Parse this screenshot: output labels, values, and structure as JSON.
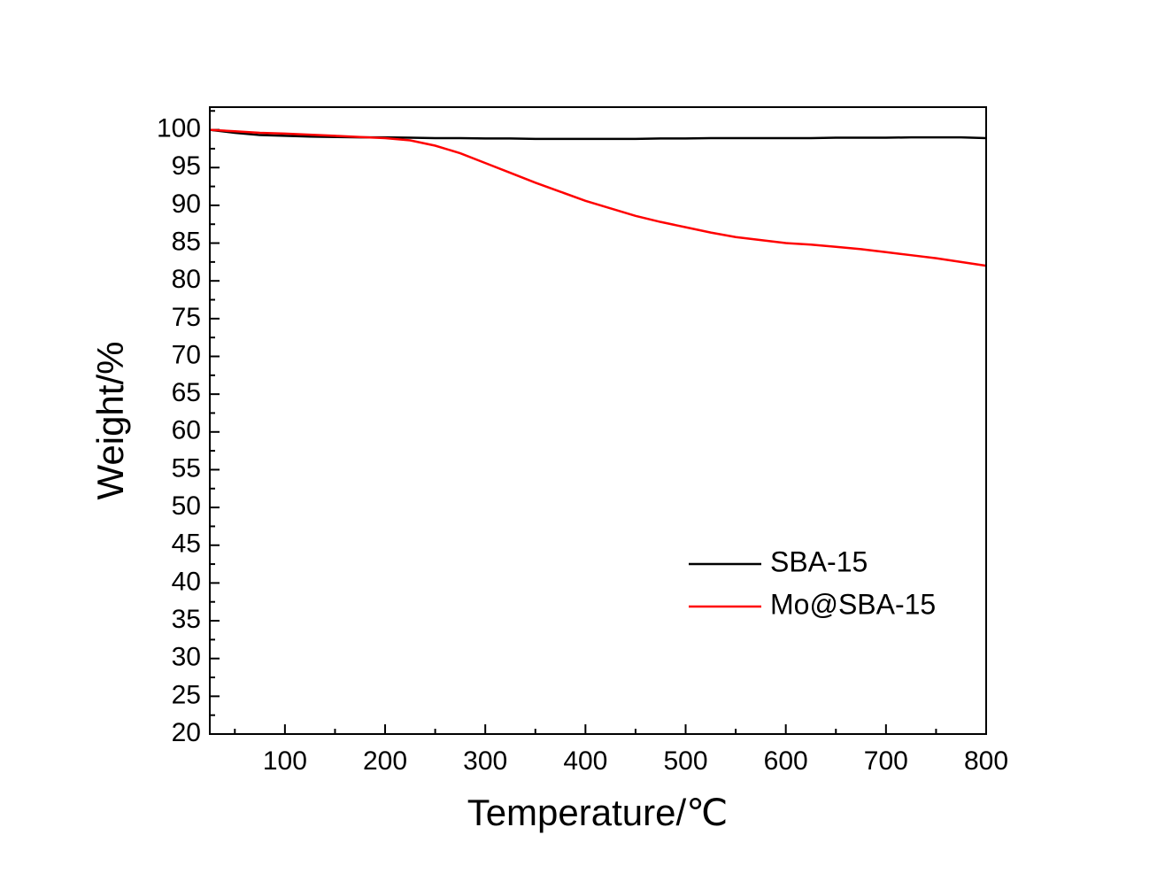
{
  "chart_data": {
    "type": "line",
    "xlabel": "Temperature/℃",
    "ylabel": "Weight/%",
    "x": [
      25,
      50,
      75,
      100,
      125,
      150,
      175,
      200,
      225,
      250,
      275,
      300,
      325,
      350,
      375,
      400,
      425,
      450,
      475,
      500,
      525,
      550,
      575,
      600,
      625,
      650,
      675,
      700,
      725,
      750,
      775,
      800
    ],
    "series": [
      {
        "name": "SBA-15",
        "color": "#000000",
        "values": [
          100,
          99.6,
          99.3,
          99.2,
          99.1,
          99.05,
          99.0,
          99.0,
          98.95,
          98.9,
          98.9,
          98.85,
          98.85,
          98.8,
          98.8,
          98.8,
          98.8,
          98.8,
          98.85,
          98.85,
          98.9,
          98.9,
          98.9,
          98.9,
          98.9,
          98.95,
          98.95,
          98.95,
          99.0,
          99.0,
          99.0,
          98.9
        ]
      },
      {
        "name": "Mo@SBA-15",
        "color": "#ff0000",
        "values": [
          100,
          99.8,
          99.6,
          99.5,
          99.35,
          99.2,
          99.05,
          98.9,
          98.6,
          97.9,
          96.9,
          95.6,
          94.3,
          93.0,
          91.8,
          90.6,
          89.6,
          88.6,
          87.8,
          87.1,
          86.4,
          85.8,
          85.4,
          85.0,
          84.8,
          84.5,
          84.2,
          83.8,
          83.4,
          83.0,
          82.5,
          82.0
        ]
      }
    ],
    "xlim": [
      25,
      800
    ],
    "xticks": [
      100,
      200,
      300,
      400,
      500,
      600,
      700,
      800
    ],
    "ylim": [
      20,
      103
    ],
    "yticks": [
      20,
      25,
      30,
      35,
      40,
      45,
      50,
      55,
      60,
      65,
      70,
      75,
      80,
      85,
      90,
      95,
      100
    ],
    "legend": "lower right",
    "grid": false
  }
}
